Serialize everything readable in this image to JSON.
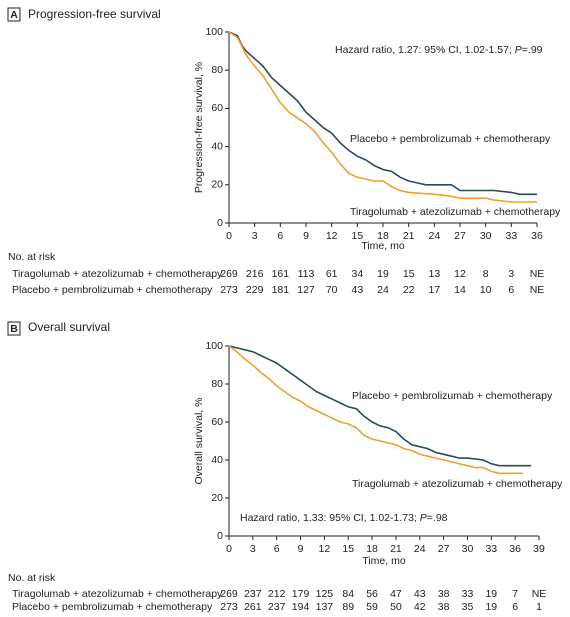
{
  "chart_data": [
    {
      "type": "line",
      "panel": "A",
      "title": "Progression-free survival",
      "xlabel": "Time, mo",
      "ylabel": "Progression-free survival, %",
      "xlim": [
        0,
        36
      ],
      "xticks": [
        0,
        3,
        6,
        9,
        12,
        15,
        18,
        21,
        24,
        27,
        30,
        33,
        36
      ],
      "ylim": [
        0,
        100
      ],
      "yticks": [
        0,
        20,
        40,
        60,
        80,
        100
      ],
      "annotation": {
        "before": "Hazard ratio, 1.27: 95% CI, 1.02-1.57; ",
        "italic": "P",
        "after": "=.99"
      },
      "series": [
        {
          "name": "Placebo + pembrolizumab + chemotherapy",
          "color": "#2b4a5c",
          "x": [
            0,
            1,
            1.5,
            2,
            3,
            4,
            5,
            6,
            7,
            8,
            9,
            10,
            11,
            12,
            13,
            14,
            15,
            16,
            17,
            18,
            19,
            20,
            21,
            22,
            23,
            26,
            27,
            31,
            33,
            34,
            36
          ],
          "values": [
            100,
            98,
            93,
            90,
            86,
            82,
            76,
            72,
            68,
            64,
            58,
            54,
            50,
            47,
            42,
            38,
            35,
            33,
            30,
            28,
            27,
            24,
            22,
            21,
            20,
            20,
            17,
            17,
            16,
            15,
            15
          ]
        },
        {
          "name": "Tiragolumab + atezolizumab + chemotherapy",
          "color": "#f0a030",
          "x": [
            0,
            1,
            2,
            3,
            4,
            5,
            6,
            7,
            8,
            9,
            10,
            11,
            12,
            13,
            14,
            15,
            16,
            17,
            18,
            19,
            20,
            21,
            24,
            26,
            27,
            30,
            31,
            33,
            36
          ],
          "values": [
            100,
            97,
            88,
            82,
            77,
            70,
            63,
            58,
            55,
            52,
            48,
            42,
            37,
            31,
            26,
            24,
            23,
            22,
            22,
            19,
            17,
            16,
            15,
            14,
            13,
            13,
            12,
            11,
            11
          ]
        }
      ],
      "risk_table": {
        "title": "No. at risk",
        "rows": [
          {
            "name": "Tiragolumab + atezolizumab + chemotherapy",
            "values": [
              269,
              216,
              161,
              113,
              61,
              34,
              19,
              15,
              13,
              12,
              8,
              3,
              "NE"
            ]
          },
          {
            "name": "Placebo + pembrolizumab + chemotherapy",
            "values": [
              273,
              229,
              181,
              127,
              70,
              43,
              24,
              22,
              17,
              14,
              10,
              6,
              "NE"
            ]
          }
        ]
      }
    },
    {
      "type": "line",
      "panel": "B",
      "title": "Overall survival",
      "xlabel": "Time, mo",
      "ylabel": "Overall survival, %",
      "xlim": [
        0,
        39
      ],
      "xticks": [
        0,
        3,
        6,
        9,
        12,
        15,
        18,
        21,
        24,
        27,
        30,
        33,
        36,
        39
      ],
      "ylim": [
        0,
        100
      ],
      "yticks": [
        0,
        20,
        40,
        60,
        80,
        100
      ],
      "annotation": {
        "before": "Hazard ratio, 1.33: 95% CI, 1.02-1.73; ",
        "italic": "P",
        "after": "=.98"
      },
      "series": [
        {
          "name": "Placebo + pembrolizumab + chemotherapy",
          "color": "#2b4a5c",
          "x": [
            0,
            1,
            2,
            3,
            4,
            5,
            6,
            7,
            8,
            9,
            10,
            11,
            12,
            13,
            14,
            15,
            16,
            17,
            18,
            19,
            20,
            21,
            22,
            23,
            24,
            25,
            26,
            27,
            28,
            29,
            30,
            32,
            33,
            34,
            38
          ],
          "values": [
            100,
            99,
            98,
            97,
            95,
            93,
            91,
            88,
            85,
            82,
            79,
            76,
            74,
            72,
            70,
            68,
            67,
            63,
            60,
            58,
            57,
            55,
            51,
            48,
            47,
            46,
            44,
            43,
            42,
            41,
            41,
            40,
            38,
            37,
            37
          ]
        },
        {
          "name": "Tiragolumab + atezolizumab + chemotherapy",
          "color": "#f0a030",
          "x": [
            0,
            1,
            2,
            3,
            4,
            5,
            6,
            7,
            8,
            9,
            10,
            11,
            12,
            13,
            14,
            15,
            16,
            17,
            18,
            19,
            20,
            21,
            22,
            23,
            24,
            25,
            26,
            27,
            28,
            29,
            30,
            31,
            32,
            33,
            34,
            35,
            37
          ],
          "values": [
            100,
            97,
            93,
            90,
            86,
            83,
            79,
            76,
            73,
            71,
            68,
            66,
            64,
            62,
            60,
            59,
            57,
            53,
            51,
            50,
            49,
            48,
            46,
            45,
            43,
            42,
            41,
            40,
            39,
            38,
            37,
            36,
            36,
            34,
            33,
            33,
            33
          ]
        }
      ],
      "risk_table": {
        "title": "No. at risk",
        "rows": [
          {
            "name": "Tiragolumab + atezolizumab + chemotherapy",
            "values": [
              269,
              237,
              212,
              179,
              125,
              84,
              56,
              47,
              43,
              38,
              33,
              19,
              7,
              "NE"
            ]
          },
          {
            "name": "Placebo + pembrolizumab + chemotherapy",
            "values": [
              273,
              261,
              237,
              194,
              137,
              89,
              59,
              50,
              42,
              38,
              35,
              19,
              6,
              1
            ]
          }
        ]
      }
    }
  ]
}
